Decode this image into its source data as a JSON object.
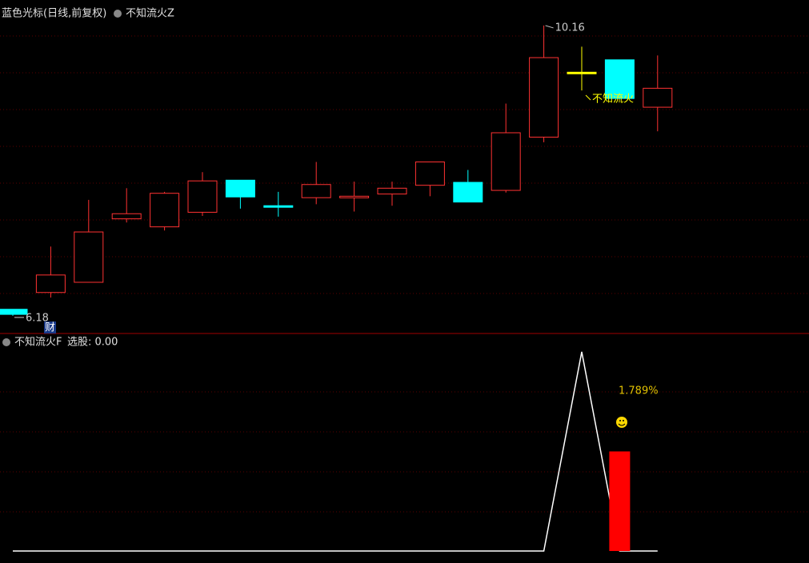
{
  "chart_data": [
    {
      "type": "candlestick",
      "title": "蓝色光标(日线,前复权)",
      "indicator": "不知流火Z",
      "open": [
        6.27,
        6.5,
        6.64,
        7.51,
        7.4,
        7.6,
        8.04,
        7.69,
        7.8,
        7.8,
        7.85,
        7.97,
        8.01,
        7.9,
        8.63,
        9.52,
        9.69,
        9.04
      ],
      "high": [
        6.27,
        7.13,
        7.77,
        7.93,
        7.88,
        8.15,
        8.04,
        7.88,
        8.29,
        8.02,
        8.02,
        8.29,
        8.18,
        9.09,
        10.16,
        9.87,
        9.69,
        9.75
      ],
      "low": [
        6.18,
        6.43,
        6.64,
        7.46,
        7.35,
        7.55,
        7.65,
        7.54,
        7.71,
        7.61,
        7.69,
        7.82,
        7.74,
        7.87,
        8.56,
        9.27,
        9.16,
        8.71
      ],
      "close": [
        6.2,
        6.74,
        7.33,
        7.58,
        7.86,
        8.03,
        7.81,
        7.67,
        7.98,
        7.82,
        7.93,
        8.29,
        7.74,
        8.69,
        9.72,
        9.52,
        9.16,
        9.3
      ],
      "up_color": "#ff3232",
      "down_color": "#00ffff",
      "flat_color": "#ffff00",
      "ylim": [
        5.96,
        10.51
      ],
      "grid": true,
      "annotations": [
        "不知流火",
        "财"
      ]
    },
    {
      "type": "combo",
      "title": "不知流火F",
      "subtitle": "选股: 0.00",
      "series": [
        {
          "type": "line",
          "color": "#ffffff",
          "values": [
            0,
            0,
            0,
            0,
            0,
            0,
            0,
            0,
            0,
            0,
            0,
            0,
            0,
            0,
            0,
            1,
            0,
            0
          ]
        },
        {
          "type": "bar",
          "color": "#ff0000",
          "values": [
            null,
            null,
            null,
            null,
            null,
            null,
            null,
            null,
            null,
            null,
            null,
            null,
            null,
            null,
            null,
            null,
            0.5,
            null
          ]
        }
      ],
      "ylim": [
        -0.02,
        1.08
      ],
      "grid": true,
      "annotation": "1.789%"
    }
  ]
}
